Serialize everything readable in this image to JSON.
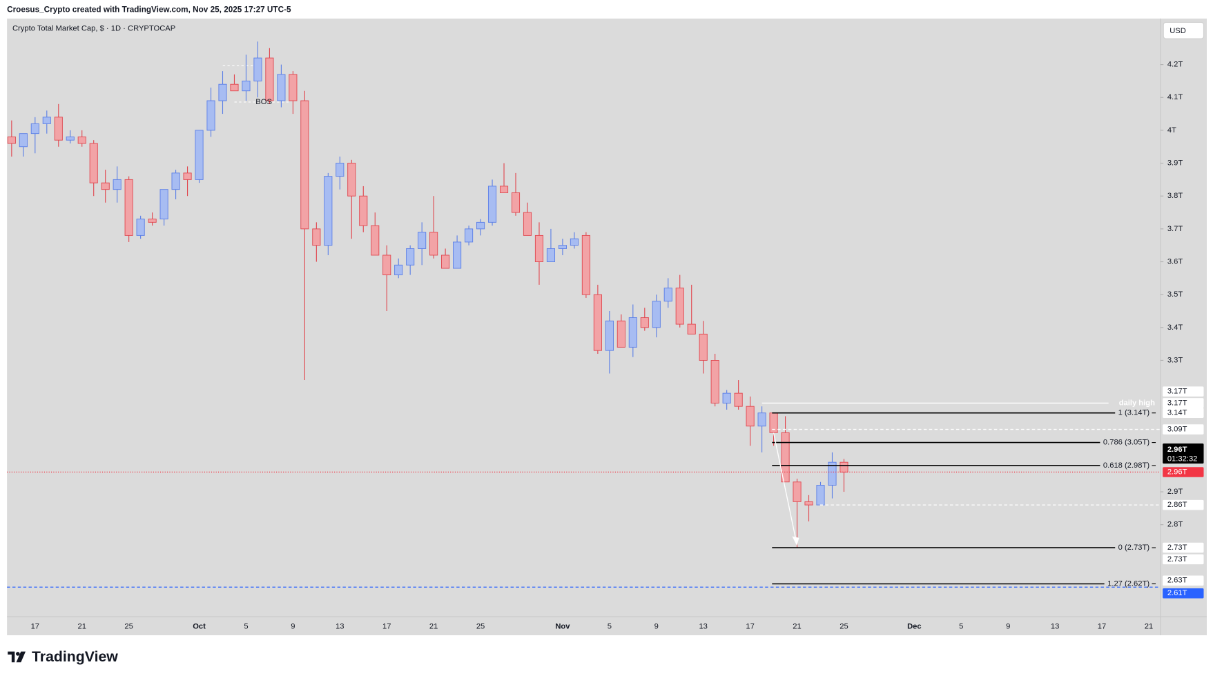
{
  "header": "Croesus_Crypto created with TradingView.com, Nov 25, 2025 17:27 UTC-5",
  "footer": "TradingView",
  "chart_data": {
    "type": "candlestick",
    "title": "Crypto Total Market Cap, $ · 1D · CRYPTOCAP",
    "currency": "USD",
    "up_color": "#a7bcf2",
    "up_edge": "#5a7ee6",
    "down_color": "#f2a3a6",
    "down_edge": "#e0464e",
    "background": "#dbdbdb",
    "grid": false,
    "categories": [
      null,
      null,
      "17",
      null,
      null,
      null,
      "21",
      null,
      null,
      null,
      "25",
      null,
      null,
      null,
      null,
      null,
      "Oct",
      null,
      null,
      null,
      "5",
      null,
      null,
      null,
      "9",
      null,
      null,
      null,
      "13",
      null,
      null,
      null,
      "17",
      null,
      null,
      null,
      "21",
      null,
      null,
      null,
      "25",
      null,
      null,
      null,
      null,
      null,
      null,
      "Nov",
      null,
      null,
      null,
      "5",
      null,
      null,
      null,
      "9",
      null,
      null,
      null,
      "13",
      null,
      null,
      null,
      "17",
      null,
      null,
      null,
      "21",
      null,
      null,
      null,
      "25",
      null,
      null,
      null,
      null,
      null,
      "Dec",
      null,
      null,
      null,
      "5",
      null,
      null,
      null,
      "9",
      null,
      null,
      null,
      "13",
      null,
      null,
      null,
      "17",
      null,
      null,
      null,
      "21",
      null
    ],
    "open": [
      3.98,
      3.95,
      3.99,
      4.02,
      4.04,
      3.97,
      3.98,
      3.96,
      3.84,
      3.82,
      3.85,
      3.68,
      3.73,
      3.73,
      3.82,
      3.87,
      3.85,
      4.0,
      4.09,
      4.14,
      4.12,
      4.15,
      4.22,
      4.09,
      4.17,
      4.09,
      3.7,
      3.65,
      3.86,
      3.9,
      3.8,
      3.71,
      3.62,
      3.56,
      3.59,
      3.64,
      3.69,
      3.62,
      3.58,
      3.66,
      3.7,
      3.72,
      3.83,
      3.81,
      3.75,
      3.68,
      3.6,
      3.64,
      3.65,
      3.68,
      3.5,
      3.33,
      3.42,
      3.34,
      3.43,
      3.4,
      3.48,
      3.52,
      3.41,
      3.38,
      3.3,
      3.17,
      3.2,
      3.16,
      3.1,
      3.14,
      3.08,
      2.93,
      2.87,
      2.86,
      2.92,
      2.99,
      null,
      null,
      null,
      null,
      null,
      null,
      null,
      null,
      null,
      null,
      null,
      null,
      null,
      null,
      null,
      null,
      null,
      null,
      null,
      null,
      null,
      null,
      null,
      null,
      null,
      null,
      null
    ],
    "high": [
      4.03,
      3.99,
      4.04,
      4.06,
      4.08,
      4.0,
      4.0,
      3.97,
      3.88,
      3.89,
      3.86,
      3.74,
      3.75,
      3.82,
      3.88,
      3.89,
      4.0,
      4.13,
      4.18,
      4.17,
      4.23,
      4.27,
      4.25,
      4.2,
      4.18,
      4.12,
      3.72,
      3.87,
      3.92,
      3.91,
      3.83,
      3.75,
      3.65,
      3.61,
      3.65,
      3.72,
      3.8,
      3.64,
      3.68,
      3.71,
      3.73,
      3.85,
      3.9,
      3.87,
      3.78,
      3.72,
      3.7,
      3.67,
      3.69,
      3.69,
      3.53,
      3.45,
      3.44,
      3.47,
      3.46,
      3.5,
      3.55,
      3.56,
      3.53,
      3.42,
      3.32,
      3.21,
      3.24,
      3.19,
      3.16,
      3.14,
      3.13,
      2.94,
      2.89,
      2.93,
      3.02,
      3.0,
      null,
      null,
      null,
      null,
      null,
      null,
      null,
      null,
      null,
      null,
      null,
      null,
      null,
      null,
      null,
      null,
      null,
      null,
      null,
      null,
      null,
      null,
      null,
      null,
      null,
      null,
      null
    ],
    "low": [
      3.92,
      3.92,
      3.93,
      3.99,
      3.95,
      3.96,
      3.95,
      3.8,
      3.78,
      3.78,
      3.66,
      3.67,
      3.71,
      3.71,
      3.79,
      3.8,
      3.84,
      3.98,
      4.05,
      4.12,
      4.09,
      4.1,
      4.08,
      4.07,
      4.05,
      3.24,
      3.6,
      3.62,
      3.82,
      3.67,
      3.69,
      3.62,
      3.45,
      3.55,
      3.56,
      3.59,
      3.61,
      3.58,
      3.58,
      3.65,
      3.68,
      3.71,
      3.81,
      3.74,
      3.68,
      3.53,
      3.6,
      3.62,
      3.64,
      3.49,
      3.32,
      3.26,
      3.34,
      3.31,
      3.39,
      3.37,
      3.46,
      3.4,
      3.38,
      3.26,
      3.16,
      3.15,
      3.15,
      3.04,
      3.02,
      3.04,
      2.93,
      2.73,
      2.81,
      2.86,
      2.88,
      2.9,
      null,
      null,
      null,
      null,
      null,
      null,
      null,
      null,
      null,
      null,
      null,
      null,
      null,
      null,
      null,
      null,
      null,
      null,
      null,
      null,
      null,
      null,
      null,
      null,
      null,
      null,
      null
    ],
    "close": [
      3.96,
      3.99,
      4.02,
      4.04,
      3.97,
      3.98,
      3.96,
      3.84,
      3.82,
      3.85,
      3.68,
      3.73,
      3.72,
      3.82,
      3.87,
      3.85,
      4.0,
      4.09,
      4.14,
      4.12,
      4.15,
      4.22,
      4.09,
      4.17,
      4.09,
      3.7,
      3.65,
      3.86,
      3.9,
      3.8,
      3.71,
      3.62,
      3.56,
      3.59,
      3.64,
      3.69,
      3.62,
      3.58,
      3.66,
      3.7,
      3.72,
      3.83,
      3.81,
      3.75,
      3.68,
      3.6,
      3.64,
      3.65,
      3.67,
      3.5,
      3.33,
      3.42,
      3.34,
      3.43,
      3.4,
      3.48,
      3.52,
      3.41,
      3.38,
      3.3,
      3.17,
      3.2,
      3.16,
      3.1,
      3.14,
      3.08,
      2.93,
      2.87,
      2.86,
      2.92,
      2.99,
      2.96,
      null,
      null,
      null,
      null,
      null,
      null,
      null,
      null,
      null,
      null,
      null,
      null,
      null,
      null,
      null,
      null,
      null,
      null,
      null,
      null,
      null,
      null,
      null,
      null,
      null,
      null,
      null
    ],
    "ylim": [
      2.52,
      4.34
    ],
    "yticks": [
      {
        "value": 4.2,
        "label": "4.2T"
      },
      {
        "value": 4.1,
        "label": "4.1T"
      },
      {
        "value": 4,
        "label": "4T"
      },
      {
        "value": 3.9,
        "label": "3.9T"
      },
      {
        "value": 3.8,
        "label": "3.8T"
      },
      {
        "value": 3.7,
        "label": "3.7T"
      },
      {
        "value": 3.6,
        "label": "3.6T"
      },
      {
        "value": 3.5,
        "label": "3.5T"
      },
      {
        "value": 3.4,
        "label": "3.4T"
      },
      {
        "value": 3.3,
        "label": "3.3T"
      },
      {
        "value": 2.9,
        "label": "2.9T"
      },
      {
        "value": 2.8,
        "label": "2.8T"
      }
    ],
    "fib_levels": [
      {
        "label": "1 (3.14T)",
        "value": 3.14
      },
      {
        "label": "0.786 (3.05T)",
        "value": 3.05
      },
      {
        "label": "0.618 (2.98T)",
        "value": 2.98
      },
      {
        "label": "0 (2.73T)",
        "value": 2.73
      },
      {
        "label": "1.27 (2.62T)",
        "value": 2.62
      }
    ],
    "hlines": [
      {
        "value": 3.17,
        "color": "#ffffff",
        "dash": "none",
        "label": "daily high"
      },
      {
        "value": 3.09,
        "color": "#ffffff",
        "dash": "4 3"
      },
      {
        "value": 2.86,
        "color": "#ffffff",
        "dash": "4 3"
      },
      {
        "value": 2.61,
        "color": "#2962ff",
        "dash": "4 3"
      },
      {
        "value": 2.96,
        "color": "#f23645",
        "dash": "1 2"
      }
    ],
    "price_labels": [
      {
        "value": 3.17,
        "label": "3.17T",
        "bg": "#ffffff",
        "fg": "#131722"
      },
      {
        "value": 3.17,
        "label": "3.17T",
        "bg": "#ffffff",
        "fg": "#131722"
      },
      {
        "value": 3.14,
        "label": "3.14T",
        "bg": "#ffffff",
        "fg": "#131722"
      },
      {
        "value": 3.09,
        "label": "3.09T",
        "bg": "#ffffff",
        "fg": "#131722"
      },
      {
        "value": 2.96,
        "label": "2.96T",
        "bg": "#000000",
        "fg": "#ffffff",
        "countdown": "01:32:32"
      },
      {
        "value": 2.96,
        "label": "2.96T",
        "bg": "#f23645",
        "fg": "#ffffff"
      },
      {
        "value": 2.86,
        "label": "2.86T",
        "bg": "#ffffff",
        "fg": "#131722"
      },
      {
        "value": 2.73,
        "label": "2.73T",
        "bg": "#ffffff",
        "fg": "#131722"
      },
      {
        "value": 2.73,
        "label": "2.73T",
        "bg": "#ffffff",
        "fg": "#131722"
      },
      {
        "value": 2.63,
        "label": "2.63T",
        "bg": "#ffffff",
        "fg": "#131722"
      },
      {
        "value": 2.61,
        "label": "2.61T",
        "bg": "#2962ff",
        "fg": "#ffffff"
      }
    ],
    "annotations": [
      {
        "text": "BOS"
      }
    ]
  }
}
